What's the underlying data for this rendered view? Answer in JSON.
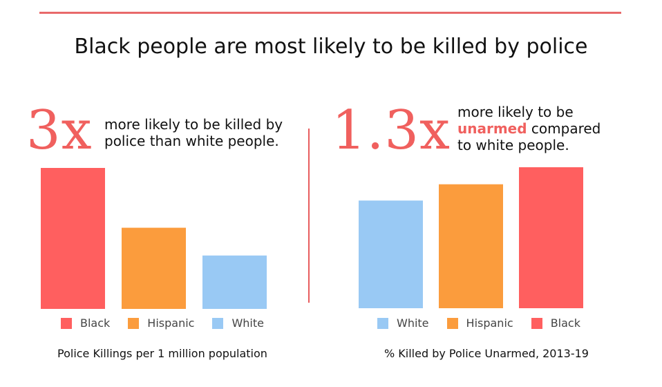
{
  "title": "Black people are most likely to be killed by police",
  "colors": {
    "black": "#ff5f5f",
    "hispanic": "#fb9c3d",
    "white": "#99c9f4",
    "accent": "#e8696a"
  },
  "left_panel": {
    "stat": "3x",
    "stat_text_line1": "more likely to be killed by",
    "stat_text_line2": "police than white people."
  },
  "right_panel": {
    "stat": "1.3x",
    "stat_text_line1": "more likely to be",
    "stat_text_highlight": "unarmed",
    "stat_text_line2_rest": " compared",
    "stat_text_line3": "to white people."
  },
  "chart_data": [
    {
      "type": "bar",
      "title": "Police Killings per 1 million population",
      "categories": [
        "Black",
        "Hispanic",
        "White"
      ],
      "values": [
        6.6,
        3.8,
        2.5
      ],
      "colors": [
        "#ff5f5f",
        "#fb9c3d",
        "#99c9f4"
      ],
      "ylim": [
        0,
        6.6
      ],
      "grid": false,
      "legend": "bottom"
    },
    {
      "type": "bar",
      "title": "% Killed by Police Unarmed, 2013-19",
      "categories": [
        "White",
        "Hispanic",
        "Black"
      ],
      "values": [
        13.9,
        16.0,
        18.2
      ],
      "colors": [
        "#99c9f4",
        "#fb9c3d",
        "#ff5f5f"
      ],
      "ylim": [
        0,
        18.2
      ],
      "grid": false,
      "legend": "bottom"
    }
  ]
}
